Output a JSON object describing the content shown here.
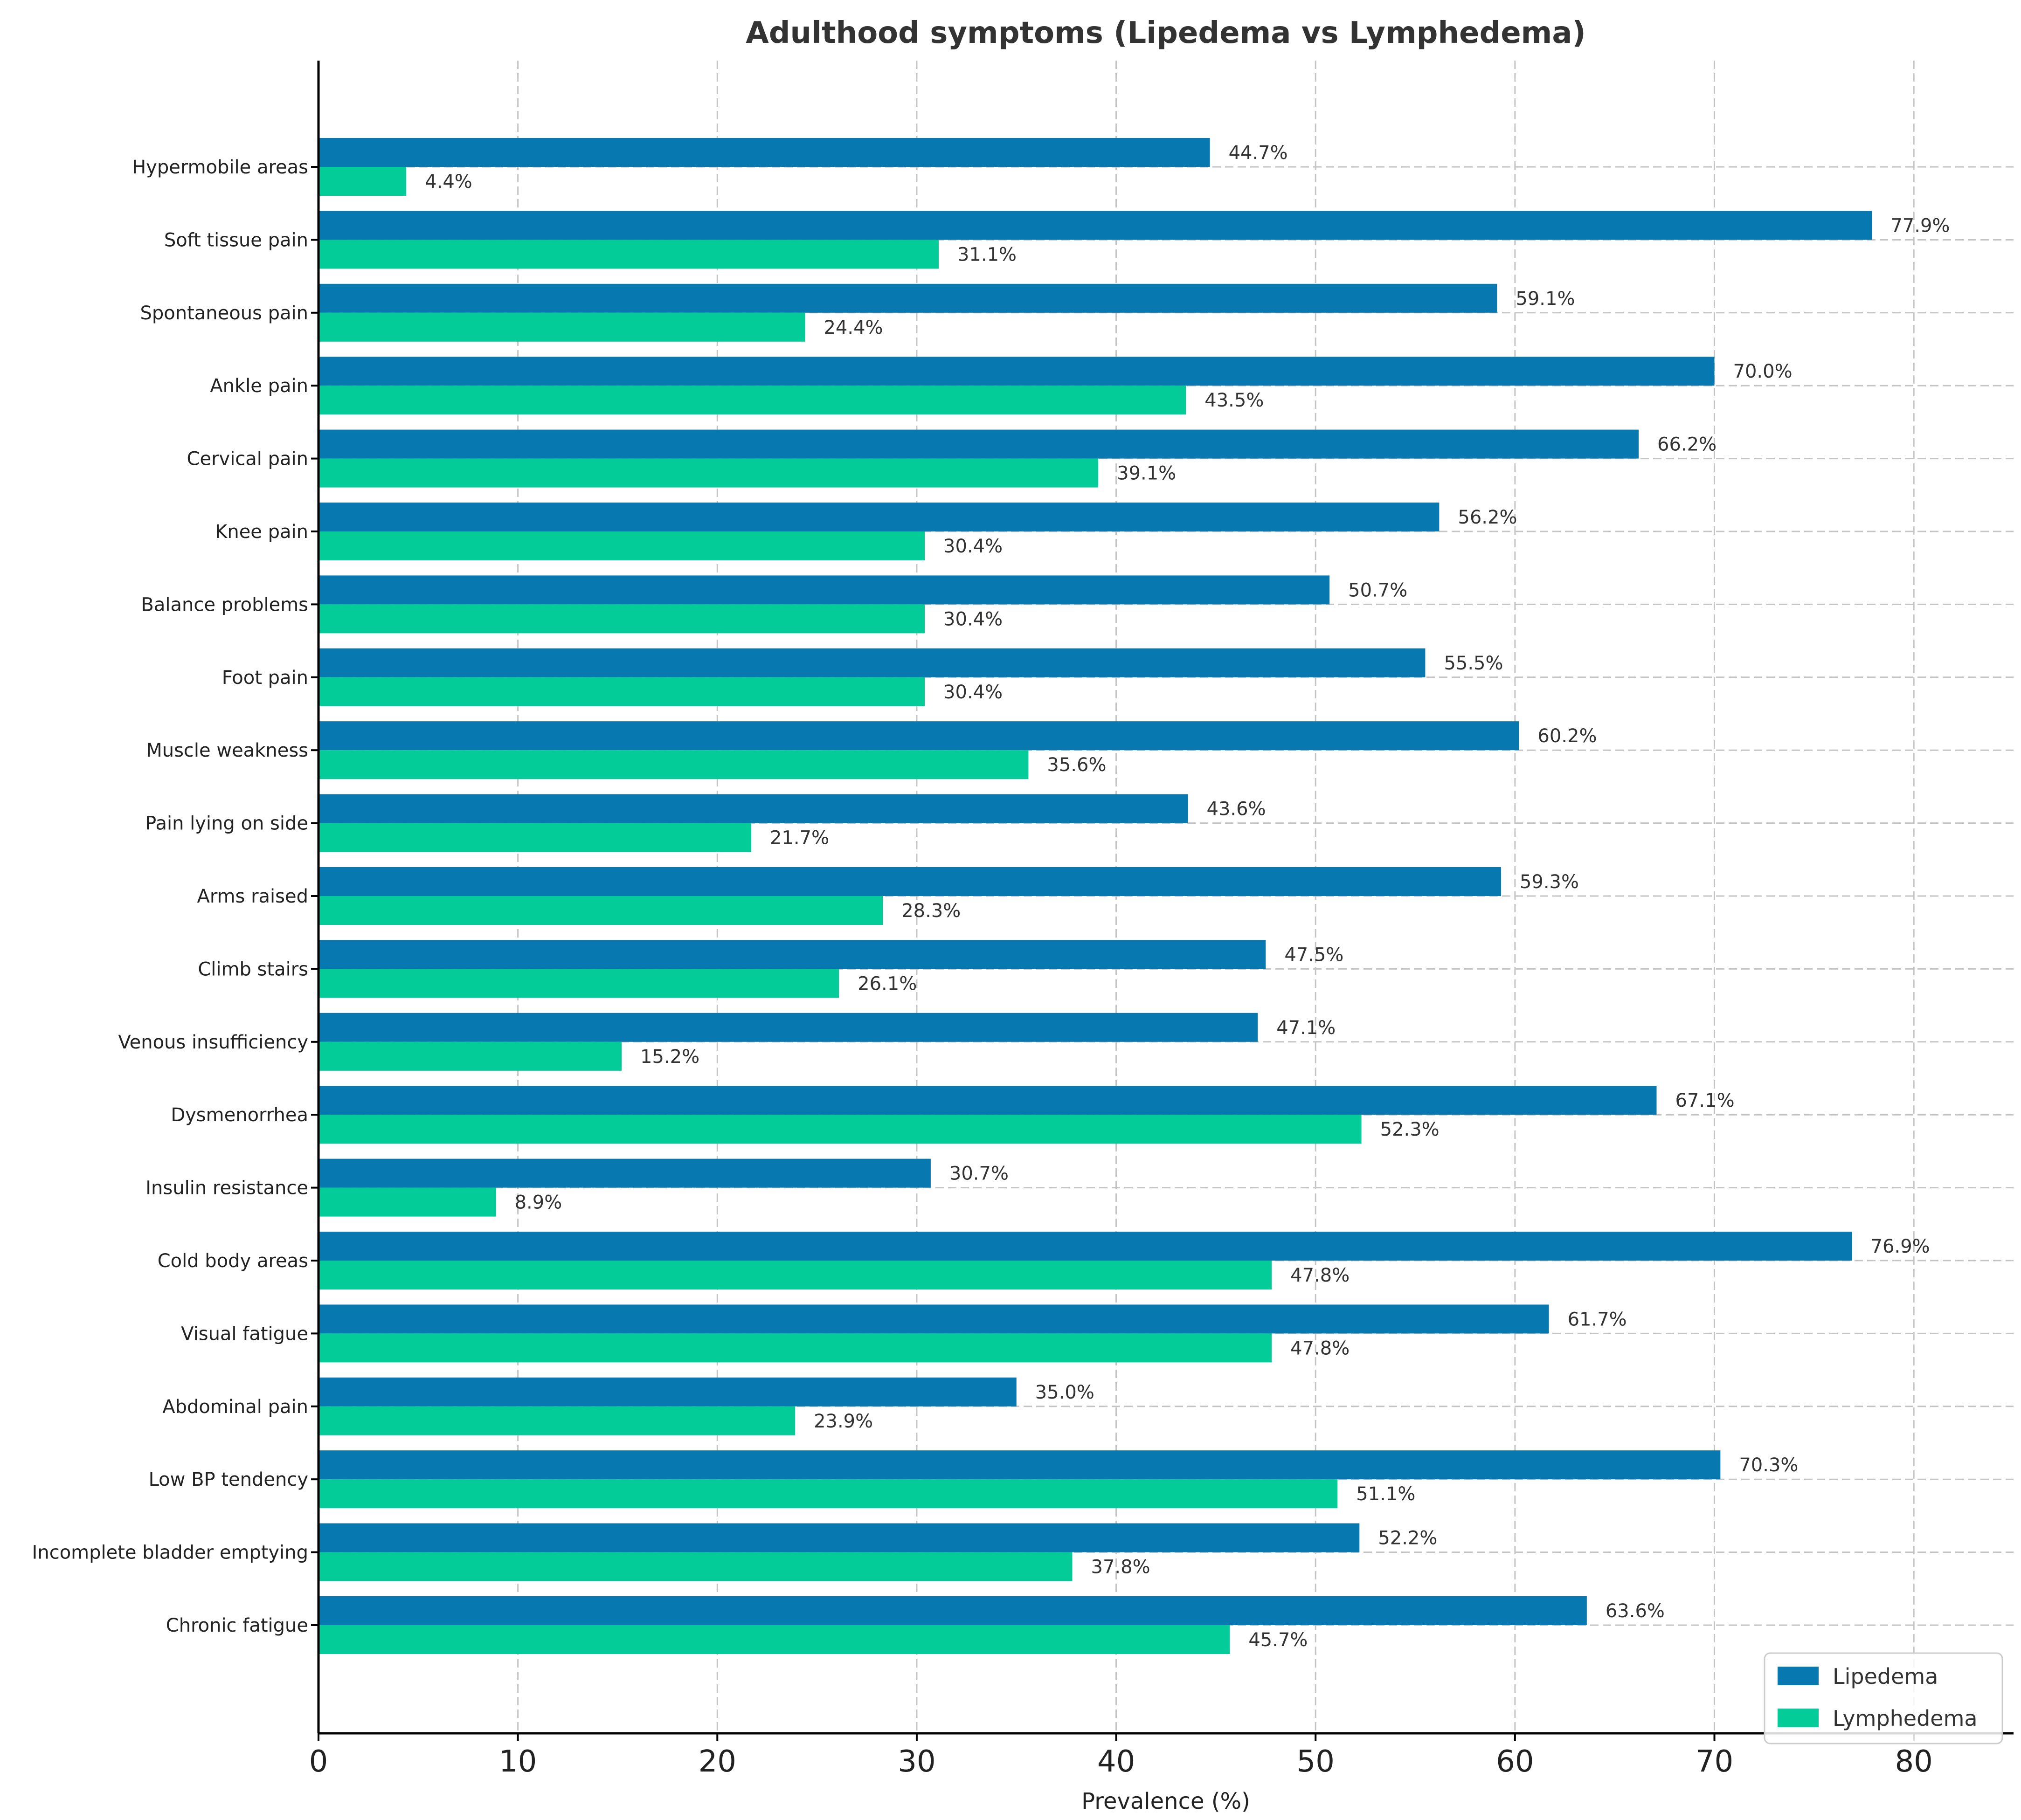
{
  "chart_data": {
    "type": "bar",
    "orientation": "horizontal",
    "title": "Adulthood symptoms (Lipedema vs Lymphedema)",
    "xlabel": "Prevalence (%)",
    "ylabel": "",
    "xlim": [
      0,
      85
    ],
    "xticks": [
      0,
      10,
      20,
      30,
      40,
      50,
      60,
      70,
      80
    ],
    "grid": true,
    "legend_position": "bottom-right",
    "categories": [
      "Hypermobile areas",
      "Soft tissue pain",
      "Spontaneous pain",
      "Ankle pain",
      "Cervical pain",
      "Knee pain",
      "Balance problems",
      "Foot pain",
      "Muscle weakness",
      "Pain lying on side",
      "Arms raised",
      "Climb stairs",
      "Venous insufficiency",
      "Dysmenorrhea",
      "Insulin resistance",
      "Cold body areas",
      "Visual fatigue",
      "Abdominal pain",
      "Low BP tendency",
      "Incomplete bladder emptying",
      "Chronic fatigue"
    ],
    "series": [
      {
        "name": "Lipedema",
        "color": "#0778b0",
        "values": [
          44.7,
          77.9,
          59.1,
          70.0,
          66.2,
          56.2,
          50.7,
          55.5,
          60.2,
          43.6,
          59.3,
          47.5,
          47.1,
          67.1,
          30.7,
          76.9,
          61.7,
          35.0,
          70.3,
          52.2,
          63.6
        ],
        "labels": [
          "44.7%",
          "77.9%",
          "59.1%",
          "70.0%",
          "66.2%",
          "56.2%",
          "50.7%",
          "55.5%",
          "60.2%",
          "43.6%",
          "59.3%",
          "47.5%",
          "47.1%",
          "67.1%",
          "30.7%",
          "76.9%",
          "61.7%",
          "35.0%",
          "70.3%",
          "52.2%",
          "63.6%"
        ]
      },
      {
        "name": "Lymphedema",
        "color": "#03cc98",
        "values": [
          4.4,
          31.1,
          24.4,
          43.5,
          39.1,
          30.4,
          30.4,
          30.4,
          35.6,
          21.7,
          28.3,
          26.1,
          15.2,
          52.3,
          8.9,
          47.8,
          47.8,
          23.9,
          51.1,
          37.8,
          45.7
        ],
        "labels": [
          "4.4%",
          "31.1%",
          "24.4%",
          "43.5%",
          "39.1%",
          "30.4%",
          "30.4%",
          "30.4%",
          "35.6%",
          "21.7%",
          "28.3%",
          "26.1%",
          "15.2%",
          "52.3%",
          "8.9%",
          "47.8%",
          "47.8%",
          "23.9%",
          "51.1%",
          "37.8%",
          "45.7%"
        ]
      }
    ]
  }
}
